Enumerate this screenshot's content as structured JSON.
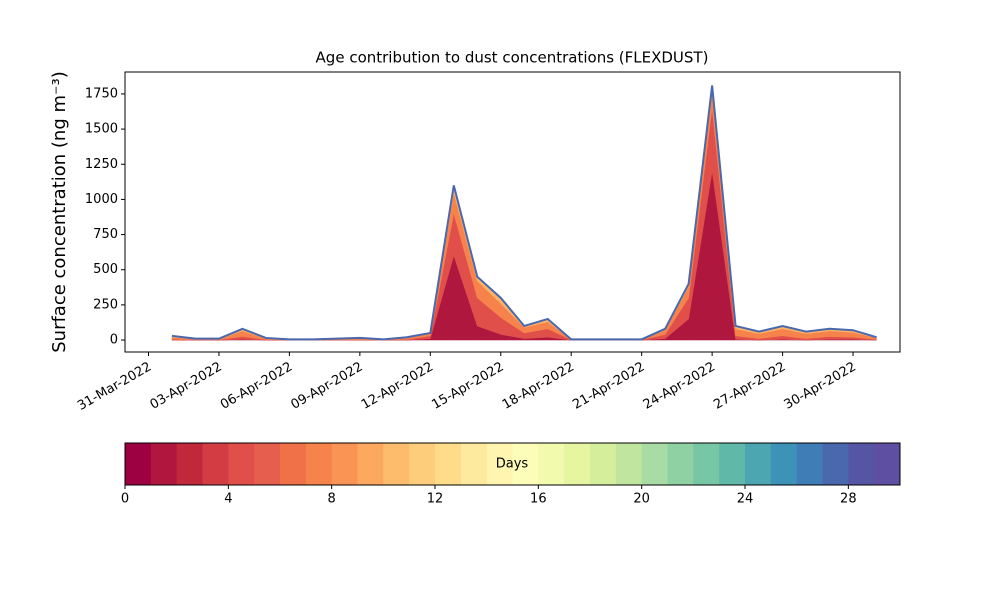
{
  "chart_data": {
    "type": "stacked-area",
    "title": "Age contribution to dust concentrations (FLEXDUST)",
    "ylabel": "Surface concentration (ng m⁻³)",
    "x": [
      "01-Apr-2022",
      "02-Apr-2022",
      "03-Apr-2022",
      "04-Apr-2022",
      "05-Apr-2022",
      "06-Apr-2022",
      "07-Apr-2022",
      "08-Apr-2022",
      "09-Apr-2022",
      "10-Apr-2022",
      "11-Apr-2022",
      "12-Apr-2022",
      "13-Apr-2022",
      "14-Apr-2022",
      "15-Apr-2022",
      "16-Apr-2022",
      "17-Apr-2022",
      "18-Apr-2022",
      "19-Apr-2022",
      "20-Apr-2022",
      "21-Apr-2022",
      "22-Apr-2022",
      "23-Apr-2022",
      "24-Apr-2022",
      "25-Apr-2022",
      "26-Apr-2022",
      "27-Apr-2022",
      "28-Apr-2022",
      "29-Apr-2022",
      "30-Apr-2022",
      "01-May-2022"
    ],
    "series": [
      {
        "color": "#b0173e",
        "values": [
          0,
          0,
          0,
          5,
          0,
          0,
          0,
          0,
          0,
          0,
          0,
          10,
          600,
          100,
          40,
          10,
          20,
          0,
          0,
          0,
          0,
          10,
          150,
          1200,
          5,
          0,
          5,
          0,
          5,
          5,
          0
        ]
      },
      {
        "color": "#e04f4a",
        "values": [
          5,
          2,
          2,
          20,
          3,
          1,
          1,
          2,
          3,
          1,
          5,
          20,
          300,
          200,
          120,
          40,
          60,
          1,
          1,
          1,
          1,
          30,
          150,
          450,
          25,
          10,
          25,
          10,
          20,
          15,
          5
        ]
      },
      {
        "color": "#f6834b",
        "values": [
          15,
          5,
          5,
          40,
          8,
          3,
          3,
          5,
          8,
          3,
          10,
          15,
          150,
          120,
          100,
          40,
          50,
          3,
          3,
          3,
          3,
          30,
          80,
          130,
          50,
          35,
          50,
          35,
          40,
          35,
          10
        ]
      },
      {
        "color": "#fdb365",
        "values": [
          10,
          3,
          3,
          15,
          4,
          1,
          1,
          3,
          4,
          1,
          5,
          5,
          50,
          30,
          40,
          10,
          20,
          1,
          1,
          1,
          1,
          10,
          20,
          30,
          20,
          15,
          20,
          15,
          15,
          15,
          5
        ]
      }
    ],
    "outline_color": "#4a68ae",
    "xlim": [
      "30-Mar-2022",
      "02-May-2022"
    ],
    "xticks": [
      "31-Mar-2022",
      "03-Apr-2022",
      "06-Apr-2022",
      "09-Apr-2022",
      "12-Apr-2022",
      "15-Apr-2022",
      "18-Apr-2022",
      "21-Apr-2022",
      "24-Apr-2022",
      "27-Apr-2022",
      "30-Apr-2022"
    ],
    "ylim": [
      -85,
      1906
    ],
    "yticks": [
      0,
      250,
      500,
      750,
      1000,
      1250,
      1500,
      1750
    ],
    "colorbar": {
      "label": "Days",
      "lim": [
        0,
        30
      ],
      "ticks": [
        0,
        4,
        8,
        12,
        16,
        20,
        24,
        28
      ],
      "colors": [
        "#9e0142",
        "#b0173e",
        "#c2283b",
        "#d33c43",
        "#e04f4a",
        "#e65e4d",
        "#f07047",
        "#f6834b",
        "#f99455",
        "#fca85e",
        "#fdbc6c",
        "#fdcd7b",
        "#fedc8a",
        "#feea9e",
        "#fff5b1",
        "#fbfdb8",
        "#f2faae",
        "#e6f5a0",
        "#d5ee9b",
        "#c0e59f",
        "#a9dca4",
        "#90d1a4",
        "#77c6a5",
        "#60b8a8",
        "#4ba6b1",
        "#3d92b8",
        "#3f7db7",
        "#4a68ae",
        "#5655a5",
        "#5e4fa2"
      ]
    }
  }
}
